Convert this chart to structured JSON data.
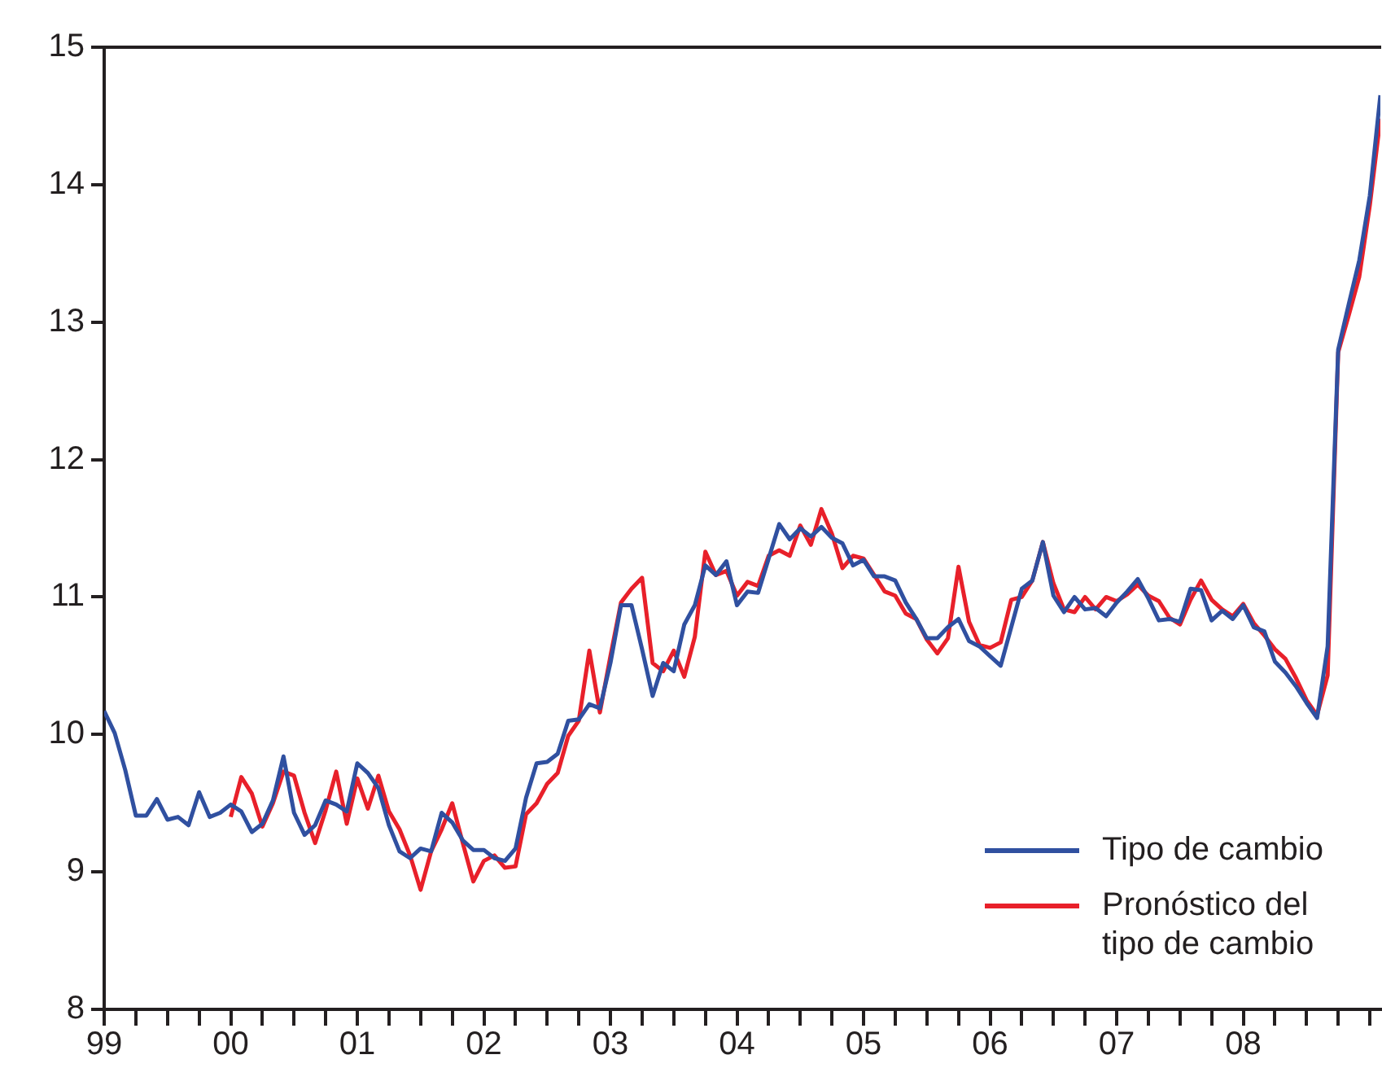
{
  "chart_data": {
    "type": "line",
    "x": [
      "1999-01",
      "1999-02",
      "1999-03",
      "1999-04",
      "1999-05",
      "1999-06",
      "1999-07",
      "1999-08",
      "1999-09",
      "1999-10",
      "1999-11",
      "1999-12",
      "2000-01",
      "2000-02",
      "2000-03",
      "2000-04",
      "2000-05",
      "2000-06",
      "2000-07",
      "2000-08",
      "2000-09",
      "2000-10",
      "2000-11",
      "2000-12",
      "2001-01",
      "2001-02",
      "2001-03",
      "2001-04",
      "2001-05",
      "2001-06",
      "2001-07",
      "2001-08",
      "2001-09",
      "2001-10",
      "2001-11",
      "2001-12",
      "2002-01",
      "2002-02",
      "2002-03",
      "2002-04",
      "2002-05",
      "2002-06",
      "2002-07",
      "2002-08",
      "2002-09",
      "2002-10",
      "2002-11",
      "2002-12",
      "2003-01",
      "2003-02",
      "2003-03",
      "2003-04",
      "2003-05",
      "2003-06",
      "2003-07",
      "2003-08",
      "2003-09",
      "2003-10",
      "2003-11",
      "2003-12",
      "2004-01",
      "2004-02",
      "2004-03",
      "2004-04",
      "2004-05",
      "2004-06",
      "2004-07",
      "2004-08",
      "2004-09",
      "2004-10",
      "2004-11",
      "2004-12",
      "2005-01",
      "2005-02",
      "2005-03",
      "2005-04",
      "2005-05",
      "2005-06",
      "2005-07",
      "2005-08",
      "2005-09",
      "2005-10",
      "2005-11",
      "2005-12",
      "2006-01",
      "2006-02",
      "2006-03",
      "2006-04",
      "2006-05",
      "2006-06",
      "2006-07",
      "2006-08",
      "2006-09",
      "2006-10",
      "2006-11",
      "2006-12",
      "2007-01",
      "2007-02",
      "2007-03",
      "2007-04",
      "2007-05",
      "2007-06",
      "2007-07",
      "2007-08",
      "2007-09",
      "2007-10",
      "2007-11",
      "2007-12",
      "2008-01",
      "2008-02",
      "2008-03",
      "2008-04",
      "2008-05",
      "2008-06",
      "2008-07",
      "2008-08",
      "2008-09",
      "2008-10",
      "2008-11",
      "2008-12",
      "2009-01",
      "2009-02"
    ],
    "series": [
      {
        "name": "Tipo de cambio",
        "color": "#3050a0",
        "values": [
          10.17,
          10.01,
          9.74,
          9.41,
          9.41,
          9.53,
          9.38,
          9.4,
          9.34,
          9.58,
          9.4,
          9.43,
          9.49,
          9.44,
          9.29,
          9.35,
          9.52,
          9.84,
          9.43,
          9.27,
          9.34,
          9.52,
          9.49,
          9.44,
          9.79,
          9.72,
          9.61,
          9.34,
          9.15,
          9.1,
          9.17,
          9.15,
          9.43,
          9.36,
          9.23,
          9.16,
          9.16,
          9.1,
          9.08,
          9.17,
          9.54,
          9.79,
          9.8,
          9.86,
          10.1,
          10.11,
          10.22,
          10.19,
          10.52,
          10.94,
          10.94,
          10.62,
          10.28,
          10.52,
          10.46,
          10.8,
          10.94,
          11.23,
          11.16,
          11.26,
          10.94,
          11.04,
          11.03,
          11.28,
          11.53,
          11.42,
          11.5,
          11.44,
          11.51,
          11.43,
          11.39,
          11.23,
          11.27,
          11.15,
          11.15,
          11.12,
          10.96,
          10.84,
          10.7,
          10.7,
          10.78,
          10.84,
          10.68,
          10.64,
          10.57,
          10.5,
          10.78,
          11.06,
          11.12,
          11.4,
          11.01,
          10.89,
          11.0,
          10.91,
          10.92,
          10.86,
          10.96,
          11.04,
          11.13,
          10.99,
          10.83,
          10.84,
          10.82,
          11.06,
          11.05,
          10.83,
          10.9,
          10.84,
          10.94,
          10.78,
          10.75,
          10.53,
          10.45,
          10.35,
          10.23,
          10.12,
          10.64,
          12.8,
          13.13,
          13.45,
          13.92,
          14.65
        ]
      },
      {
        "name": "Pronóstico del tipo de cambio",
        "color": "#e8202a",
        "values": [
          null,
          null,
          null,
          null,
          null,
          null,
          null,
          null,
          null,
          null,
          null,
          null,
          9.4,
          9.69,
          9.57,
          9.33,
          9.5,
          9.73,
          9.7,
          9.43,
          9.21,
          9.45,
          9.73,
          9.35,
          9.68,
          9.46,
          9.7,
          9.44,
          9.31,
          9.12,
          8.87,
          9.15,
          9.31,
          9.5,
          9.21,
          8.93,
          9.08,
          9.12,
          9.03,
          9.04,
          9.42,
          9.5,
          9.64,
          9.72,
          9.99,
          10.1,
          10.61,
          10.16,
          10.57,
          10.96,
          11.06,
          11.14,
          10.52,
          10.46,
          10.61,
          10.42,
          10.71,
          11.33,
          11.16,
          11.19,
          11.01,
          11.11,
          11.08,
          11.3,
          11.34,
          11.3,
          11.52,
          11.38,
          11.64,
          11.46,
          11.21,
          11.3,
          11.28,
          11.16,
          11.04,
          11.01,
          10.88,
          10.84,
          10.69,
          10.59,
          10.7,
          11.22,
          10.82,
          10.65,
          10.63,
          10.67,
          10.98,
          11.0,
          11.12,
          11.4,
          11.1,
          10.91,
          10.89,
          11.0,
          10.91,
          11.0,
          10.97,
          11.02,
          11.09,
          11.01,
          10.97,
          10.85,
          10.8,
          10.98,
          11.12,
          10.98,
          10.91,
          10.86,
          10.95,
          10.81,
          10.72,
          10.62,
          10.55,
          10.41,
          10.25,
          10.14,
          10.43,
          12.78,
          13.05,
          13.33,
          13.85,
          14.48
        ]
      }
    ],
    "xlim": [
      "1999-01",
      "2009-02"
    ],
    "xticks": [
      {
        "value": "1999-01",
        "label": "99"
      },
      {
        "value": "1999-04",
        "label": null
      },
      {
        "value": "1999-07",
        "label": null
      },
      {
        "value": "1999-10",
        "label": null
      },
      {
        "value": "2000-01",
        "label": "00"
      },
      {
        "value": "2000-04",
        "label": null
      },
      {
        "value": "2000-07",
        "label": null
      },
      {
        "value": "2000-10",
        "label": null
      },
      {
        "value": "2001-01",
        "label": "01"
      },
      {
        "value": "2001-04",
        "label": null
      },
      {
        "value": "2001-07",
        "label": null
      },
      {
        "value": "2001-10",
        "label": null
      },
      {
        "value": "2002-01",
        "label": "02"
      },
      {
        "value": "2002-04",
        "label": null
      },
      {
        "value": "2002-07",
        "label": null
      },
      {
        "value": "2002-10",
        "label": null
      },
      {
        "value": "2003-01",
        "label": "03"
      },
      {
        "value": "2003-04",
        "label": null
      },
      {
        "value": "2003-07",
        "label": null
      },
      {
        "value": "2003-10",
        "label": null
      },
      {
        "value": "2004-01",
        "label": "04"
      },
      {
        "value": "2004-04",
        "label": null
      },
      {
        "value": "2004-07",
        "label": null
      },
      {
        "value": "2004-10",
        "label": null
      },
      {
        "value": "2005-01",
        "label": "05"
      },
      {
        "value": "2005-04",
        "label": null
      },
      {
        "value": "2005-07",
        "label": null
      },
      {
        "value": "2005-10",
        "label": null
      },
      {
        "value": "2006-01",
        "label": "06"
      },
      {
        "value": "2006-04",
        "label": null
      },
      {
        "value": "2006-07",
        "label": null
      },
      {
        "value": "2006-10",
        "label": null
      },
      {
        "value": "2007-01",
        "label": "07"
      },
      {
        "value": "2007-04",
        "label": null
      },
      {
        "value": "2007-07",
        "label": null
      },
      {
        "value": "2007-10",
        "label": null
      },
      {
        "value": "2008-01",
        "label": "08"
      },
      {
        "value": "2008-04",
        "label": null
      },
      {
        "value": "2008-07",
        "label": null
      },
      {
        "value": "2008-10",
        "label": null
      },
      {
        "value": "2009-01",
        "label": null
      }
    ],
    "ylim": [
      8,
      15
    ],
    "yticks": [
      8,
      9,
      10,
      11,
      12,
      13,
      14,
      15
    ],
    "grid": false,
    "legend": "bottom right",
    "marker": "none",
    "line_style": "solid"
  }
}
